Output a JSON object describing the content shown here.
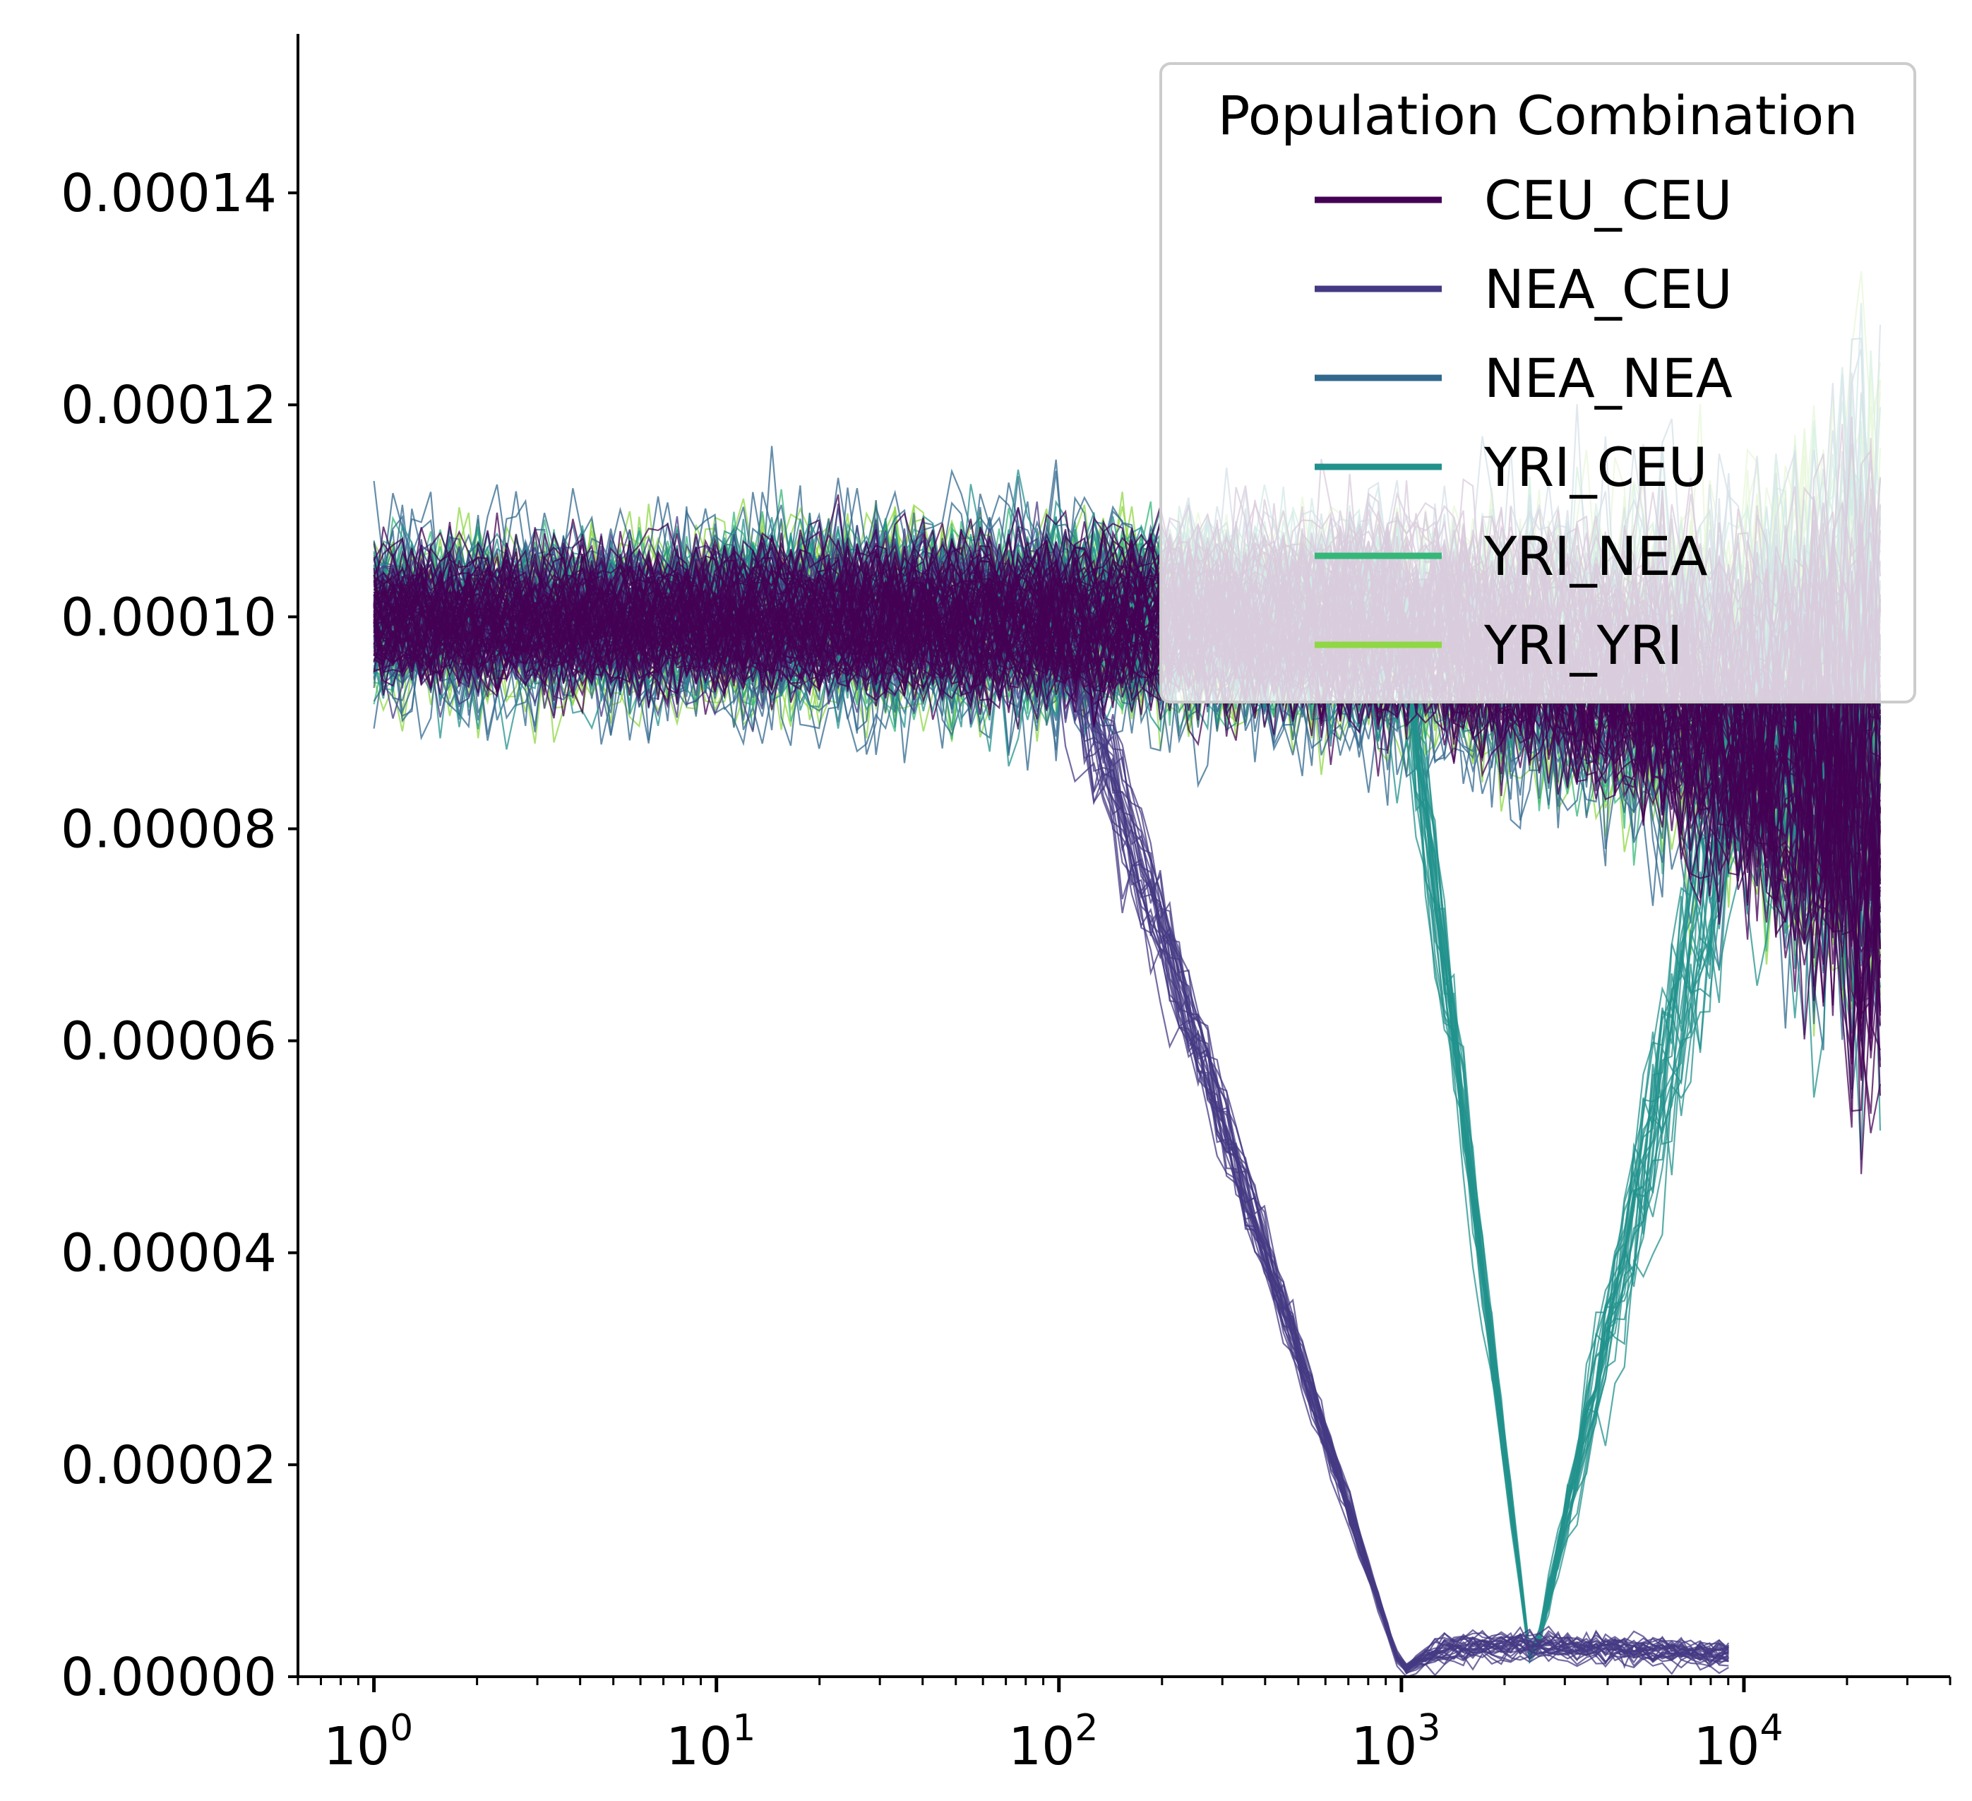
{
  "chart_data": {
    "type": "line",
    "title": "",
    "xlabel": "",
    "ylabel": "",
    "xscale": "log",
    "xlim": [
      0.6,
      40000
    ],
    "ylim": [
      0,
      0.000155
    ],
    "x_ticks": [
      {
        "value": 1,
        "base": "10",
        "exp": "0"
      },
      {
        "value": 10,
        "base": "10",
        "exp": "1"
      },
      {
        "value": 100,
        "base": "10",
        "exp": "2"
      },
      {
        "value": 1000,
        "base": "10",
        "exp": "3"
      },
      {
        "value": 10000,
        "base": "10",
        "exp": "4"
      }
    ],
    "y_ticks": [
      {
        "value": 0.0,
        "label": "0.00000"
      },
      {
        "value": 2e-05,
        "label": "0.00002"
      },
      {
        "value": 4e-05,
        "label": "0.00004"
      },
      {
        "value": 6e-05,
        "label": "0.00006"
      },
      {
        "value": 8e-05,
        "label": "0.00008"
      },
      {
        "value": 0.0001,
        "label": "0.00010"
      },
      {
        "value": 0.00012,
        "label": "0.00012"
      },
      {
        "value": 0.00014,
        "label": "0.00014"
      }
    ],
    "legend": {
      "title": "Population Combination",
      "placement": "top-right",
      "entries": [
        "CEU_CEU",
        "NEA_CEU",
        "NEA_NEA",
        "YRI_CEU",
        "YRI_NEA",
        "YRI_YRI"
      ]
    },
    "series": [
      {
        "name": "CEU_CEU",
        "color": "#440154",
        "x": [
          1,
          10,
          100,
          1000,
          5000,
          10000,
          20000,
          25000
        ],
        "center": [
          0.0001,
          0.0001,
          0.0001,
          0.0001,
          9.5e-05,
          9e-05,
          8.8e-05,
          8.5e-05
        ],
        "spread": [
          5.5e-06,
          6e-06,
          7e-06,
          9e-06,
          1.1e-05,
          1.4e-05,
          2.5e-05,
          3e-05
        ]
      },
      {
        "name": "NEA_CEU",
        "color": "#443983",
        "x": [
          1,
          10,
          100,
          1000,
          1300,
          2000,
          5000,
          9500
        ],
        "center": [
          0.0001,
          0.0001,
          0.0001,
          5e-07,
          2.5e-06,
          3e-06,
          2.5e-06,
          2e-06
        ],
        "spread": [
          6e-06,
          6e-06,
          7e-06,
          4e-07,
          1.2e-06,
          1.4e-06,
          1.2e-06,
          1.2e-06
        ]
      },
      {
        "name": "NEA_NEA",
        "color": "#31688e",
        "x": [
          1,
          10,
          100,
          1000,
          10000,
          25000
        ],
        "center": [
          0.0001,
          0.0001,
          0.0001,
          9.8e-05,
          9.3e-05,
          9e-05
        ],
        "spread": [
          7.5e-06,
          8.5e-06,
          9e-06,
          1e-05,
          1.6e-05,
          2.8e-05
        ]
      },
      {
        "name": "YRI_CEU",
        "color": "#21918c",
        "x": [
          1,
          10,
          100,
          1000,
          2400,
          10000,
          25000
        ],
        "center": [
          0.0001,
          0.0001,
          0.0001,
          0.0001,
          5e-07,
          9e-05,
          8.8e-05
        ],
        "spread": [
          6e-06,
          7e-06,
          8e-06,
          9e-06,
          3e-07,
          1.5e-05,
          2.8e-05
        ]
      },
      {
        "name": "YRI_NEA",
        "color": "#35b779",
        "x": [
          1,
          10,
          100,
          1000,
          10000,
          25000
        ],
        "center": [
          0.0001,
          0.0001,
          0.0001,
          9.9e-05,
          9.3e-05,
          9e-05
        ],
        "spread": [
          6.5e-06,
          7.5e-06,
          8e-06,
          9e-06,
          1.6e-05,
          3e-05
        ]
      },
      {
        "name": "YRI_YRI",
        "color": "#8fd744",
        "x": [
          1,
          10,
          100,
          1000,
          10000,
          25000
        ],
        "center": [
          0.0001,
          0.0001,
          0.0001,
          9.9e-05,
          9.4e-05,
          9.2e-05
        ],
        "spread": [
          6.5e-06,
          7.5e-06,
          8e-06,
          9e-06,
          1.6e-05,
          3e-05
        ]
      }
    ]
  }
}
